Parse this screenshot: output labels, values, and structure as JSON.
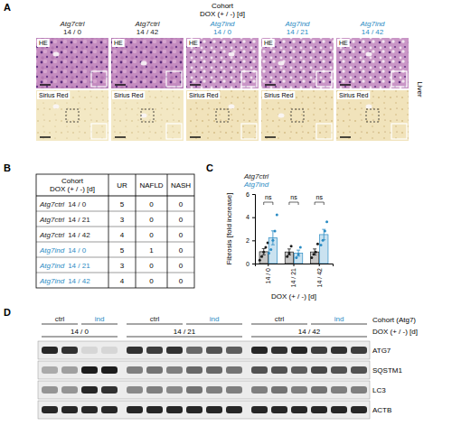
{
  "panel_labels": [
    "A",
    "B",
    "C",
    "D"
  ],
  "histology": {
    "header": [
      "Cohort",
      "DOX (+ / -) [d]"
    ],
    "columns": [
      {
        "genotype": "Atg7ctrl",
        "dox": "14 / 0",
        "color": "#1a1a1a"
      },
      {
        "genotype": "Atg7ctrl",
        "dox": "14 / 42",
        "color": "#1a1a1a"
      },
      {
        "genotype": "Atg7ind",
        "dox": "14 / 0",
        "color": "#2b8cc4"
      },
      {
        "genotype": "Atg7ind",
        "dox": "14 / 21",
        "color": "#2b8cc4"
      },
      {
        "genotype": "Atg7ind",
        "dox": "14 / 42",
        "color": "#2b8cc4"
      }
    ],
    "rows": [
      "HE",
      "Sirius Red"
    ],
    "tissue": "Liver"
  },
  "table": {
    "header": [
      "Cohort",
      "DOX (+ / -) [d]"
    ],
    "columns": [
      "UR",
      "NAFLD",
      "NASH"
    ],
    "rows": [
      {
        "genotype": "Atg7ctrl",
        "dox": "14 / 0",
        "color": "#1a1a1a",
        "values": [
          5,
          0,
          0
        ]
      },
      {
        "genotype": "Atg7ctrl",
        "dox": "14 / 21",
        "color": "#1a1a1a",
        "values": [
          3,
          0,
          0
        ]
      },
      {
        "genotype": "Atg7ctrl",
        "dox": "14 / 42",
        "color": "#1a1a1a",
        "values": [
          4,
          0,
          0
        ]
      },
      {
        "genotype": "Atg7ind",
        "dox": "14 / 0",
        "color": "#2b8cc4",
        "values": [
          5,
          1,
          0
        ]
      },
      {
        "genotype": "Atg7ind",
        "dox": "14 / 21",
        "color": "#2b8cc4",
        "values": [
          3,
          0,
          0
        ]
      },
      {
        "genotype": "Atg7ind",
        "dox": "14 / 42",
        "color": "#2b8cc4",
        "values": [
          4,
          0,
          0
        ]
      }
    ]
  },
  "chart_data": {
    "type": "bar",
    "y_label": "Fibrosis [fold increase]",
    "x_label": "DOX (+ / -) [d]",
    "categories": [
      "14 / 0",
      "14 / 21",
      "14 / 42"
    ],
    "ylim": [
      0,
      6
    ],
    "yticks": [
      0,
      2,
      4,
      6
    ],
    "legend": "top-left",
    "series": [
      {
        "name": "Atg7ctrl",
        "color": "#1a1a1a",
        "values": [
          1.02,
          1.0,
          1.0
        ],
        "errors": [
          0.27,
          0.26,
          0.26
        ],
        "points": [
          [
            0.3,
            0.6,
            1.0,
            1.4,
            1.8
          ],
          [
            0.6,
            0.9,
            1.5
          ],
          [
            0.5,
            0.8,
            1.0,
            1.7
          ]
        ]
      },
      {
        "name": "Atg7ind",
        "color": "#2b8cc4",
        "values": [
          2.22,
          0.9,
          2.5
        ],
        "errors": [
          0.6,
          0.26,
          0.45
        ],
        "points": [
          [
            0.9,
            1.2,
            2.0,
            2.8,
            4.2
          ],
          [
            0.5,
            0.8,
            1.4
          ],
          [
            1.6,
            2.0,
            2.8,
            3.6
          ]
        ]
      }
    ],
    "annotations": [
      {
        "text": "ns",
        "category": 0
      },
      {
        "text": "ns",
        "category": 1
      },
      {
        "text": "ns",
        "category": 2
      }
    ]
  },
  "blot": {
    "header": [
      "Cohort (Atg7)",
      "DOX (+ / -) [d]"
    ],
    "groups": [
      {
        "dox": "14 / 0",
        "labels": [
          {
            "text": "ctrl",
            "color": "#1a1a1a",
            "lanes": 2
          },
          {
            "text": "ind",
            "color": "#2b8cc4",
            "lanes": 2
          }
        ]
      },
      {
        "dox": "14 / 21",
        "labels": [
          {
            "text": "ctrl",
            "color": "#1a1a1a",
            "lanes": 3
          },
          {
            "text": "ind",
            "color": "#2b8cc4",
            "lanes": 3
          }
        ]
      },
      {
        "dox": "14 / 42",
        "labels": [
          {
            "text": "ctrl",
            "color": "#1a1a1a",
            "lanes": 3
          },
          {
            "text": "ind",
            "color": "#2b8cc4",
            "lanes": 3
          }
        ]
      }
    ],
    "rows": [
      {
        "name": "ATG7",
        "intensity": [
          0.9,
          0.85,
          0.1,
          0.1,
          0.85,
          0.8,
          0.85,
          0.6,
          0.7,
          0.65,
          0.9,
          0.85,
          0.9,
          0.8,
          0.85,
          0.8
        ]
      },
      {
        "name": "SQSTM1",
        "intensity": [
          0.3,
          0.35,
          0.95,
          0.95,
          0.5,
          0.55,
          0.5,
          0.6,
          0.6,
          0.55,
          0.7,
          0.7,
          0.65,
          0.75,
          0.7,
          0.7
        ]
      },
      {
        "name": "LC3",
        "intensity": [
          0.4,
          0.4,
          0.9,
          0.85,
          0.45,
          0.5,
          0.45,
          0.55,
          0.5,
          0.5,
          0.5,
          0.55,
          0.5,
          0.55,
          0.5,
          0.5
        ]
      },
      {
        "name": "ACTB",
        "intensity": [
          0.9,
          0.9,
          0.9,
          0.9,
          0.9,
          0.9,
          0.9,
          0.9,
          0.9,
          0.9,
          0.9,
          0.9,
          0.9,
          0.9,
          0.9,
          0.9
        ]
      }
    ]
  }
}
